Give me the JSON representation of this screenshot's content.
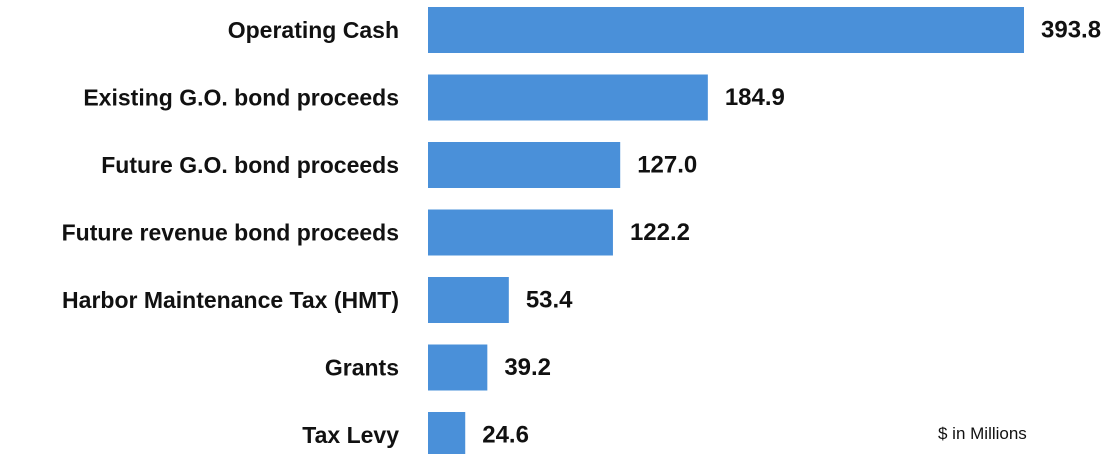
{
  "chart_data": {
    "type": "bar",
    "orientation": "horizontal",
    "categories": [
      "Operating Cash",
      "Existing G.O. bond proceeds",
      "Future G.O. bond proceeds",
      "Future revenue bond proceeds",
      "Harbor Maintenance Tax (HMT)",
      "Grants",
      "Tax Levy"
    ],
    "values": [
      393.8,
      184.9,
      127.0,
      122.2,
      53.4,
      39.2,
      24.6
    ],
    "value_labels": [
      "393.8",
      "184.9",
      "127.0",
      "122.2",
      "53.4",
      "39.2",
      "24.6"
    ],
    "xlim": [
      0,
      393.8
    ],
    "grid": false,
    "legend": "none",
    "unit_note": "$ in Millions",
    "bar_color": "#4a90d9"
  }
}
